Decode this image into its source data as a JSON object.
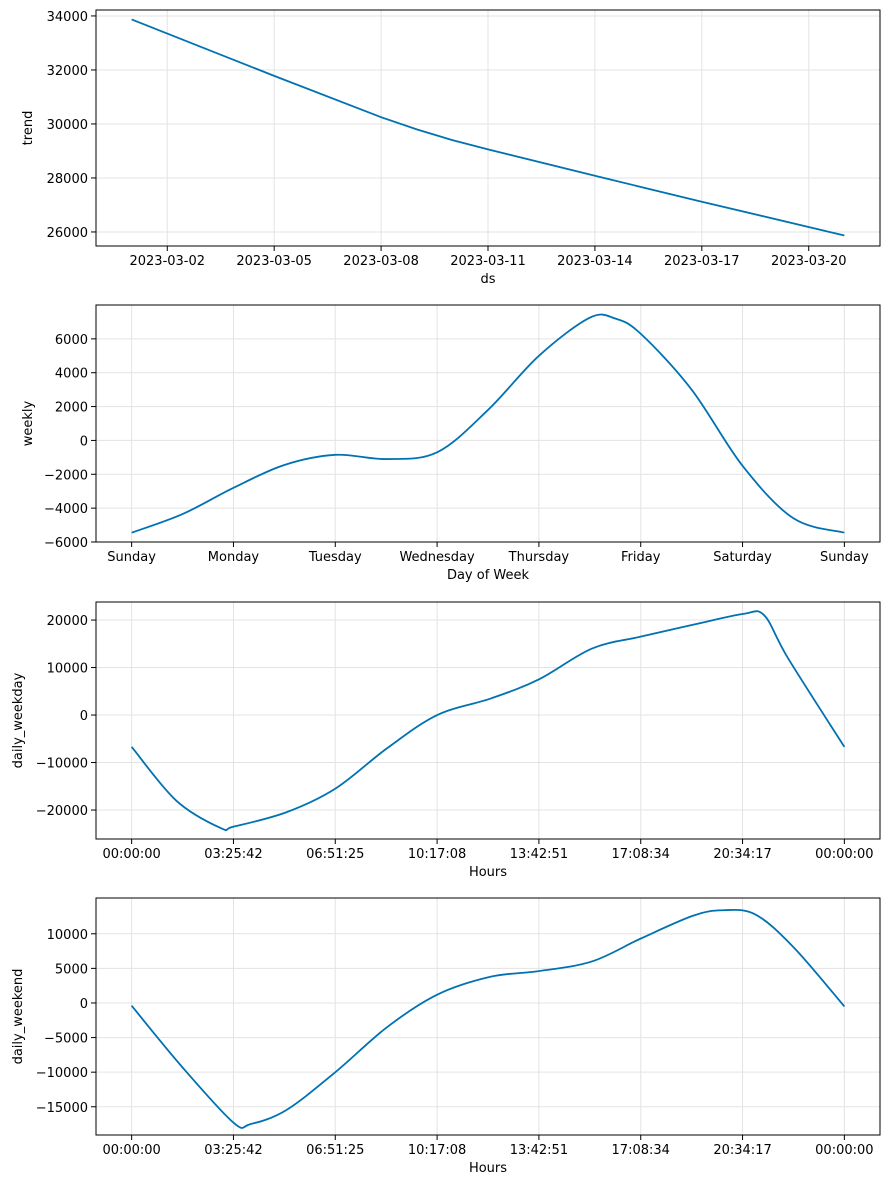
{
  "line_color": "#0072B2",
  "grid_color": "#e3e3e3",
  "chart_data": [
    {
      "type": "line",
      "xtype": "date",
      "ylabel": "trend",
      "xlabel": "ds",
      "xlim": [
        "2023-02-28",
        "2023-03-22"
      ],
      "ylim": [
        25480,
        34220
      ],
      "xticks": [
        "2023-03-02",
        "2023-03-05",
        "2023-03-08",
        "2023-03-11",
        "2023-03-14",
        "2023-03-17",
        "2023-03-20"
      ],
      "yticks": [
        26000,
        28000,
        30000,
        32000,
        34000
      ],
      "grid": true,
      "x": [
        "2023-03-01",
        "2023-03-05",
        "2023-03-08",
        "2023-03-09",
        "2023-03-10",
        "2023-03-11",
        "2023-03-14",
        "2023-03-17",
        "2023-03-21"
      ],
      "y": [
        33870,
        31780,
        30250,
        29800,
        29400,
        29060,
        28080,
        27120,
        25870
      ],
      "smooth": false
    },
    {
      "type": "line",
      "xtype": "category",
      "ylabel": "weekly",
      "xlabel": "Day of Week",
      "xlim": [
        -0.35,
        7.35
      ],
      "ylim": [
        -6000,
        8000
      ],
      "xticks": [
        0,
        1,
        2,
        3,
        4,
        5,
        6,
        7
      ],
      "xticklabels": [
        "Sunday",
        "Monday",
        "Tuesday",
        "Wednesday",
        "Thursday",
        "Friday",
        "Saturday",
        "Sunday"
      ],
      "yticks": [
        -6000,
        -4000,
        -2000,
        0,
        2000,
        4000,
        6000
      ],
      "grid": true,
      "x": [
        0,
        0.5,
        1,
        1.5,
        2,
        2.5,
        3,
        3.5,
        4,
        4.5,
        4.75,
        5,
        5.5,
        6,
        6.5,
        7
      ],
      "y": [
        -5450,
        -4350,
        -2800,
        -1450,
        -850,
        -1100,
        -700,
        1800,
        5000,
        7250,
        7200,
        6300,
        3000,
        -1500,
        -4600,
        -5450
      ],
      "smooth": true
    },
    {
      "type": "line",
      "xtype": "hours",
      "ylabel": "daily_weekday",
      "xlabel": "Hours",
      "xlim": [
        -1.2,
        25.2
      ],
      "ylim": [
        -26100,
        23800
      ],
      "xticks": [
        0,
        3.4286,
        6.8571,
        10.2857,
        13.7143,
        17.1429,
        20.5714,
        24
      ],
      "xticklabels": [
        "00:00:00",
        "03:25:42",
        "06:51:25",
        "10:17:08",
        "13:42:51",
        "17:08:34",
        "20:34:17",
        "00:00:00"
      ],
      "yticks": [
        -20000,
        -10000,
        0,
        10000,
        20000
      ],
      "grid": true,
      "x": [
        0,
        1.5,
        3.0,
        3.43,
        5.2,
        6.86,
        8.6,
        10.29,
        12.1,
        13.71,
        15.5,
        17.14,
        18.9,
        20.6,
        21.3,
        22.1,
        24
      ],
      "y": [
        -6700,
        -18000,
        -23800,
        -23500,
        -20500,
        -15500,
        -7000,
        0,
        3500,
        7500,
        14000,
        16500,
        19000,
        21300,
        21000,
        12000,
        -6700
      ],
      "smooth": true
    },
    {
      "type": "line",
      "xtype": "hours",
      "ylabel": "daily_weekend",
      "xlabel": "Hours",
      "xlim": [
        -1.2,
        25.2
      ],
      "ylim": [
        -19080,
        15170
      ],
      "xticks": [
        0,
        3.4286,
        6.8571,
        10.2857,
        13.7143,
        17.1429,
        20.5714,
        24
      ],
      "xticklabels": [
        "00:00:00",
        "03:25:42",
        "06:51:25",
        "10:17:08",
        "13:42:51",
        "17:08:34",
        "20:34:17",
        "00:00:00"
      ],
      "yticks": [
        -15000,
        -10000,
        -5000,
        0,
        5000,
        10000
      ],
      "grid": true,
      "x": [
        0,
        1.65,
        3.43,
        4.0,
        5.2,
        6.86,
        8.6,
        10.29,
        12.1,
        13.71,
        15.5,
        17.14,
        18.9,
        19.9,
        21.0,
        22.3,
        24
      ],
      "y": [
        -400,
        -9000,
        -17300,
        -17500,
        -15500,
        -10000,
        -3500,
        1200,
        3800,
        4600,
        6000,
        9300,
        12600,
        13400,
        12800,
        8000,
        -500
      ],
      "smooth": true
    }
  ]
}
